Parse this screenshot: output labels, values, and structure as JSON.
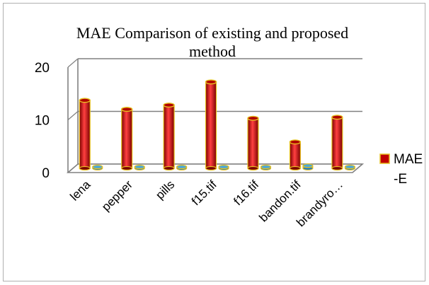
{
  "chart_data": {
    "type": "bar",
    "title": "MAE Comparison of existing and proposed method",
    "categories": [
      "lena",
      "pepper",
      "pills",
      "f15.tif",
      "f16.tif",
      "bandon.tif",
      "brandyro…"
    ],
    "series": [
      {
        "name": "MAE -E",
        "values": [
          12.9,
          11.2,
          12.0,
          16.4,
          9.5,
          5.0,
          9.7
        ]
      },
      {
        "values": [
          0.1,
          0.2,
          0.1,
          0.1,
          0.1,
          0.5,
          0.1
        ]
      }
    ],
    "ylim": [
      0,
      20
    ],
    "yticks": [
      0,
      10,
      20
    ],
    "grid": true,
    "legend_position": "right",
    "legend_label_line1": "MAE",
    "legend_label_line2": "-E",
    "colors": {
      "bar": "#c00000",
      "bar_dark": "#7a0000",
      "bar_highlight": "#ff4040",
      "bar_outline": "#e6c020",
      "small_bar": "#4aa8d8",
      "gridline": "#808080",
      "axis": "#808080"
    }
  }
}
